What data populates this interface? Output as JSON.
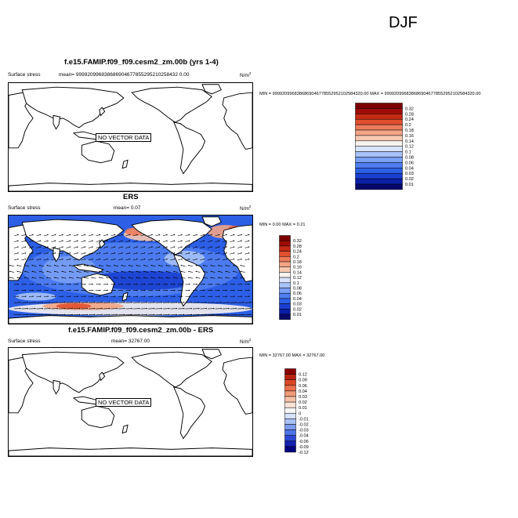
{
  "season": "DJF",
  "panels": [
    {
      "title": "f.e15.FAMIP.f09_f09.cesm2_zm.00b (yrs 1-4)",
      "field": "Surface stress",
      "mean": "mean= 999920996838686904677855295210258432 0.00",
      "unit": "N/m",
      "unit_sup": "2",
      "minmax": "MIN = 9999209968386869046778552952102584320.00 MAX = 9999209968386869046778552952102584320.00",
      "overlay": "NO VECTOR DATA",
      "colorbar": [
        "0.32",
        "0.28",
        "0.24",
        "0.2",
        "0.18",
        "0.16",
        "0.14",
        "0.12",
        "0.1",
        "0.08",
        "0.06",
        "0.04",
        "0.03",
        "0.02",
        "0.01"
      ]
    },
    {
      "title": "ERS",
      "field": "Surface stress",
      "mean": "mean=   0.07",
      "unit": "N/m",
      "unit_sup": "2",
      "minmax": "MIN =   0.00 MAX =   0.21",
      "overlay": "",
      "colorbar": [
        "0.32",
        "0.28",
        "0.24",
        "0.2",
        "0.18",
        "0.16",
        "0.14",
        "0.12",
        "0.1",
        "0.08",
        "0.06",
        "0.04",
        "0.03",
        "0.02",
        "0.01"
      ]
    },
    {
      "title": "f.e15.FAMIP.f09_f09.cesm2_zm.00b - ERS",
      "field": "Surface stress",
      "mean": "mean= 32767.00",
      "unit": "N/m",
      "unit_sup": "2",
      "minmax": "MIN = 32767.00 MAX = 32767.00",
      "overlay": "NO VECTOR DATA",
      "colorbar": [
        "0.12",
        "0.09",
        "0.06",
        "0.04",
        "0.03",
        "0.02",
        "0.01",
        "0",
        "-0.01",
        "-0.02",
        "-0.03",
        "-0.04",
        "-0.06",
        "-0.09",
        "-0.12"
      ]
    }
  ],
  "chart_data": {
    "type": "heatmap",
    "title": "DJF Surface stress",
    "units": "N/m2",
    "panels": [
      {
        "name": "f.e15.FAMIP.f09_f09.cesm2_zm.00b (yrs 1-4)",
        "levels": [
          0.01,
          0.02,
          0.03,
          0.04,
          0.06,
          0.08,
          0.1,
          0.12,
          0.14,
          0.16,
          0.18,
          0.2,
          0.24,
          0.28,
          0.32
        ]
      },
      {
        "name": "ERS",
        "mean": 0.07,
        "min": 0.0,
        "max": 0.21,
        "levels": [
          0.01,
          0.02,
          0.03,
          0.04,
          0.06,
          0.08,
          0.1,
          0.12,
          0.14,
          0.16,
          0.18,
          0.2,
          0.24,
          0.28,
          0.32
        ]
      },
      {
        "name": "f.e15.FAMIP.f09_f09.cesm2_zm.00b - ERS",
        "mean": 32767.0,
        "min": 32767.0,
        "max": 32767.0,
        "levels": [
          -0.12,
          -0.09,
          -0.06,
          -0.04,
          -0.03,
          -0.02,
          -0.01,
          0,
          0.01,
          0.02,
          0.03,
          0.04,
          0.06,
          0.09,
          0.12
        ]
      }
    ],
    "colors": {
      "seq": [
        "#08086b",
        "#0a1fa8",
        "#1a3fcf",
        "#2c5fe6",
        "#4f7ef0",
        "#7aa0f5",
        "#a6c2f8",
        "#d7e4fb",
        "#f6f2ee",
        "#f7c9b0",
        "#f3a585",
        "#ed7c5c",
        "#e1502f",
        "#c42a15",
        "#9e0c05",
        "#7a0000"
      ],
      "div": [
        "#000080",
        "#1420b0",
        "#2c48d4",
        "#4f73e8",
        "#7c9bf1",
        "#a9c0f7",
        "#d5e2fb",
        "#f6f6f6",
        "#fbe2d6",
        "#f7c2a9",
        "#f19b7a",
        "#ea704c",
        "#da4625",
        "#b8230f",
        "#8a0000"
      ]
    }
  }
}
